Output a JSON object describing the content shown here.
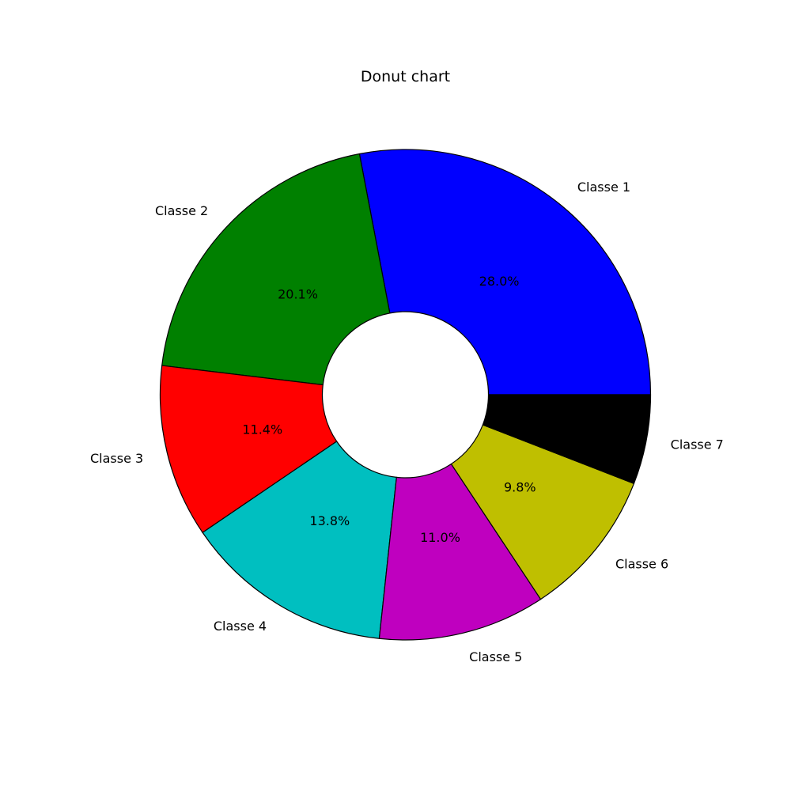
{
  "chart_data": {
    "type": "pie",
    "variant": "donut",
    "title": "Donut chart",
    "categories": [
      "Classe 1",
      "Classe 2",
      "Classe 3",
      "Classe 4",
      "Classe 5",
      "Classe 6",
      "Classe 7"
    ],
    "values": [
      28.0,
      20.1,
      11.4,
      13.8,
      11.0,
      9.8,
      5.9
    ],
    "percent_labels": [
      "28.0%",
      "20.1%",
      "11.4%",
      "13.8%",
      "11.0%",
      "9.8%",
      ""
    ],
    "colors": [
      "#0000ff",
      "#008000",
      "#ff0000",
      "#00bfc0",
      "#bf00bf",
      "#bfbf00",
      "#000000"
    ],
    "edge_color": "#000000",
    "legend": "none"
  }
}
